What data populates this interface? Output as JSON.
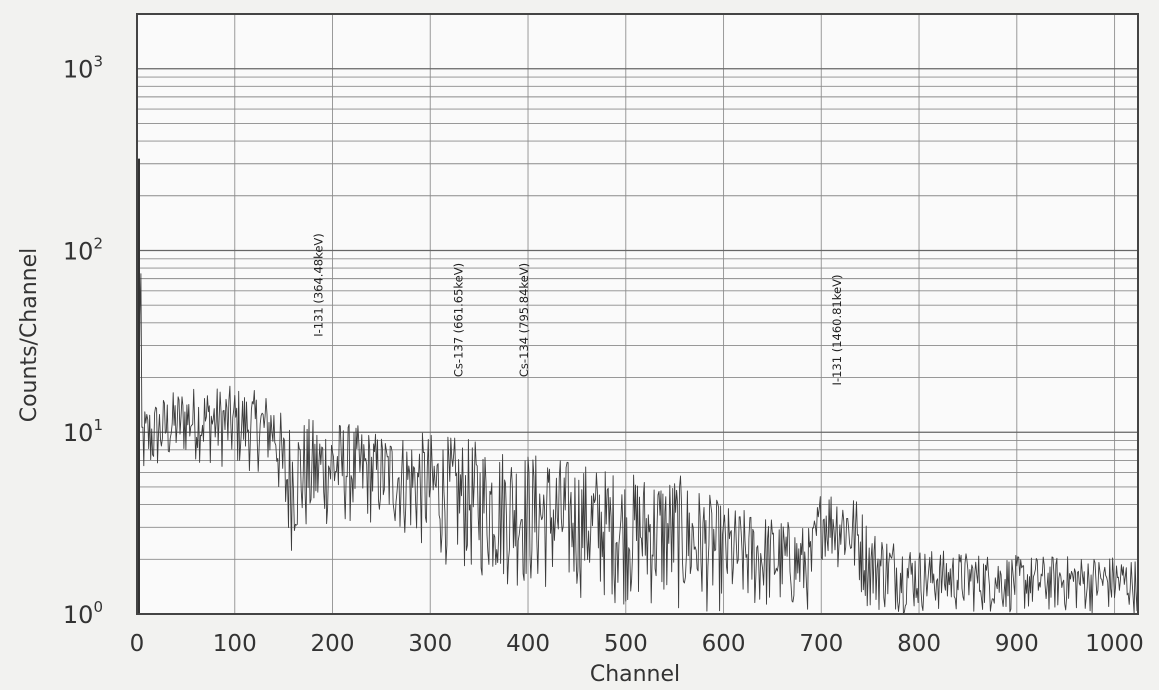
{
  "chart_data": {
    "type": "line",
    "title": "",
    "xlabel": "Channel",
    "ylabel": "Counts/Channel",
    "xlim": [
      0,
      1024
    ],
    "ylim": [
      1,
      2000
    ],
    "yscale": "log",
    "grid": true,
    "legend": "none",
    "x_ticks": [
      "0",
      "100",
      "200",
      "300",
      "400",
      "500",
      "600",
      "700",
      "800",
      "900",
      "1000"
    ],
    "y_ticks": [
      {
        "base": "10",
        "exp": "0",
        "value": 1
      },
      {
        "base": "10",
        "exp": "1",
        "value": 10
      },
      {
        "base": "10",
        "exp": "2",
        "value": 100
      },
      {
        "base": "10",
        "exp": "3",
        "value": 1000
      }
    ],
    "annotations": [
      {
        "text": "I-131 (364.48keV)",
        "x": 190
      },
      {
        "text": "Cs-137 (661.65keV)",
        "x": 333
      },
      {
        "text": "Cs-134 (795.84keV)",
        "x": 400
      },
      {
        "text": "I-131 (1460.81keV)",
        "x": 720
      }
    ],
    "envelope": [
      {
        "x": 0,
        "lo": 1,
        "hi": 320
      },
      {
        "x": 5,
        "lo": 5,
        "hi": 14
      },
      {
        "x": 50,
        "lo": 7,
        "hi": 18
      },
      {
        "x": 100,
        "lo": 6,
        "hi": 18
      },
      {
        "x": 140,
        "lo": 6,
        "hi": 16
      },
      {
        "x": 150,
        "lo": 2,
        "hi": 12
      },
      {
        "x": 200,
        "lo": 3,
        "hi": 12
      },
      {
        "x": 250,
        "lo": 3,
        "hi": 10
      },
      {
        "x": 300,
        "lo": 2,
        "hi": 10
      },
      {
        "x": 350,
        "lo": 1.5,
        "hi": 9
      },
      {
        "x": 400,
        "lo": 1.3,
        "hi": 8
      },
      {
        "x": 450,
        "lo": 1.2,
        "hi": 7
      },
      {
        "x": 500,
        "lo": 1.1,
        "hi": 6
      },
      {
        "x": 550,
        "lo": 1,
        "hi": 6
      },
      {
        "x": 600,
        "lo": 1,
        "hi": 4
      },
      {
        "x": 650,
        "lo": 1,
        "hi": 3.5
      },
      {
        "x": 690,
        "lo": 1,
        "hi": 3
      },
      {
        "x": 700,
        "lo": 2,
        "hi": 5
      },
      {
        "x": 730,
        "lo": 1.5,
        "hi": 5
      },
      {
        "x": 750,
        "lo": 1,
        "hi": 3
      },
      {
        "x": 800,
        "lo": 1,
        "hi": 2.3
      },
      {
        "x": 850,
        "lo": 1,
        "hi": 2.2
      },
      {
        "x": 900,
        "lo": 1,
        "hi": 2.1
      },
      {
        "x": 1000,
        "lo": 1,
        "hi": 2.1
      },
      {
        "x": 1024,
        "lo": 1,
        "hi": 2
      }
    ]
  }
}
